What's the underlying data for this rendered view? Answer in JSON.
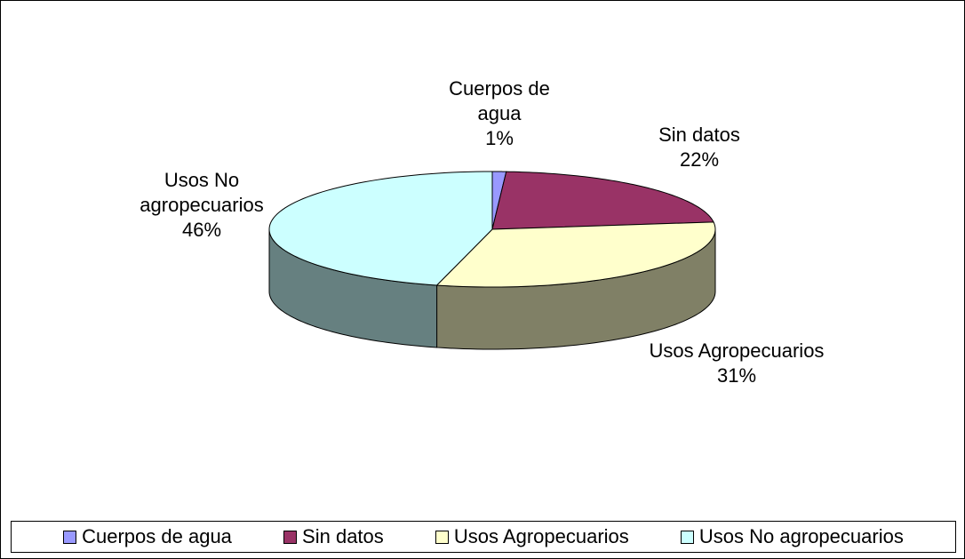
{
  "chart_data": {
    "type": "pie",
    "categories": [
      "Cuerpos de agua",
      "Sin datos",
      "Usos Agropecuarios",
      "Usos No agropecuarios"
    ],
    "values": [
      1,
      22,
      31,
      46
    ],
    "value_labels": [
      "1%",
      "22%",
      "31%",
      "46%"
    ],
    "colors": [
      "#9999ff",
      "#993366",
      "#ffffcc",
      "#ccffff"
    ],
    "legend": "bottom"
  }
}
